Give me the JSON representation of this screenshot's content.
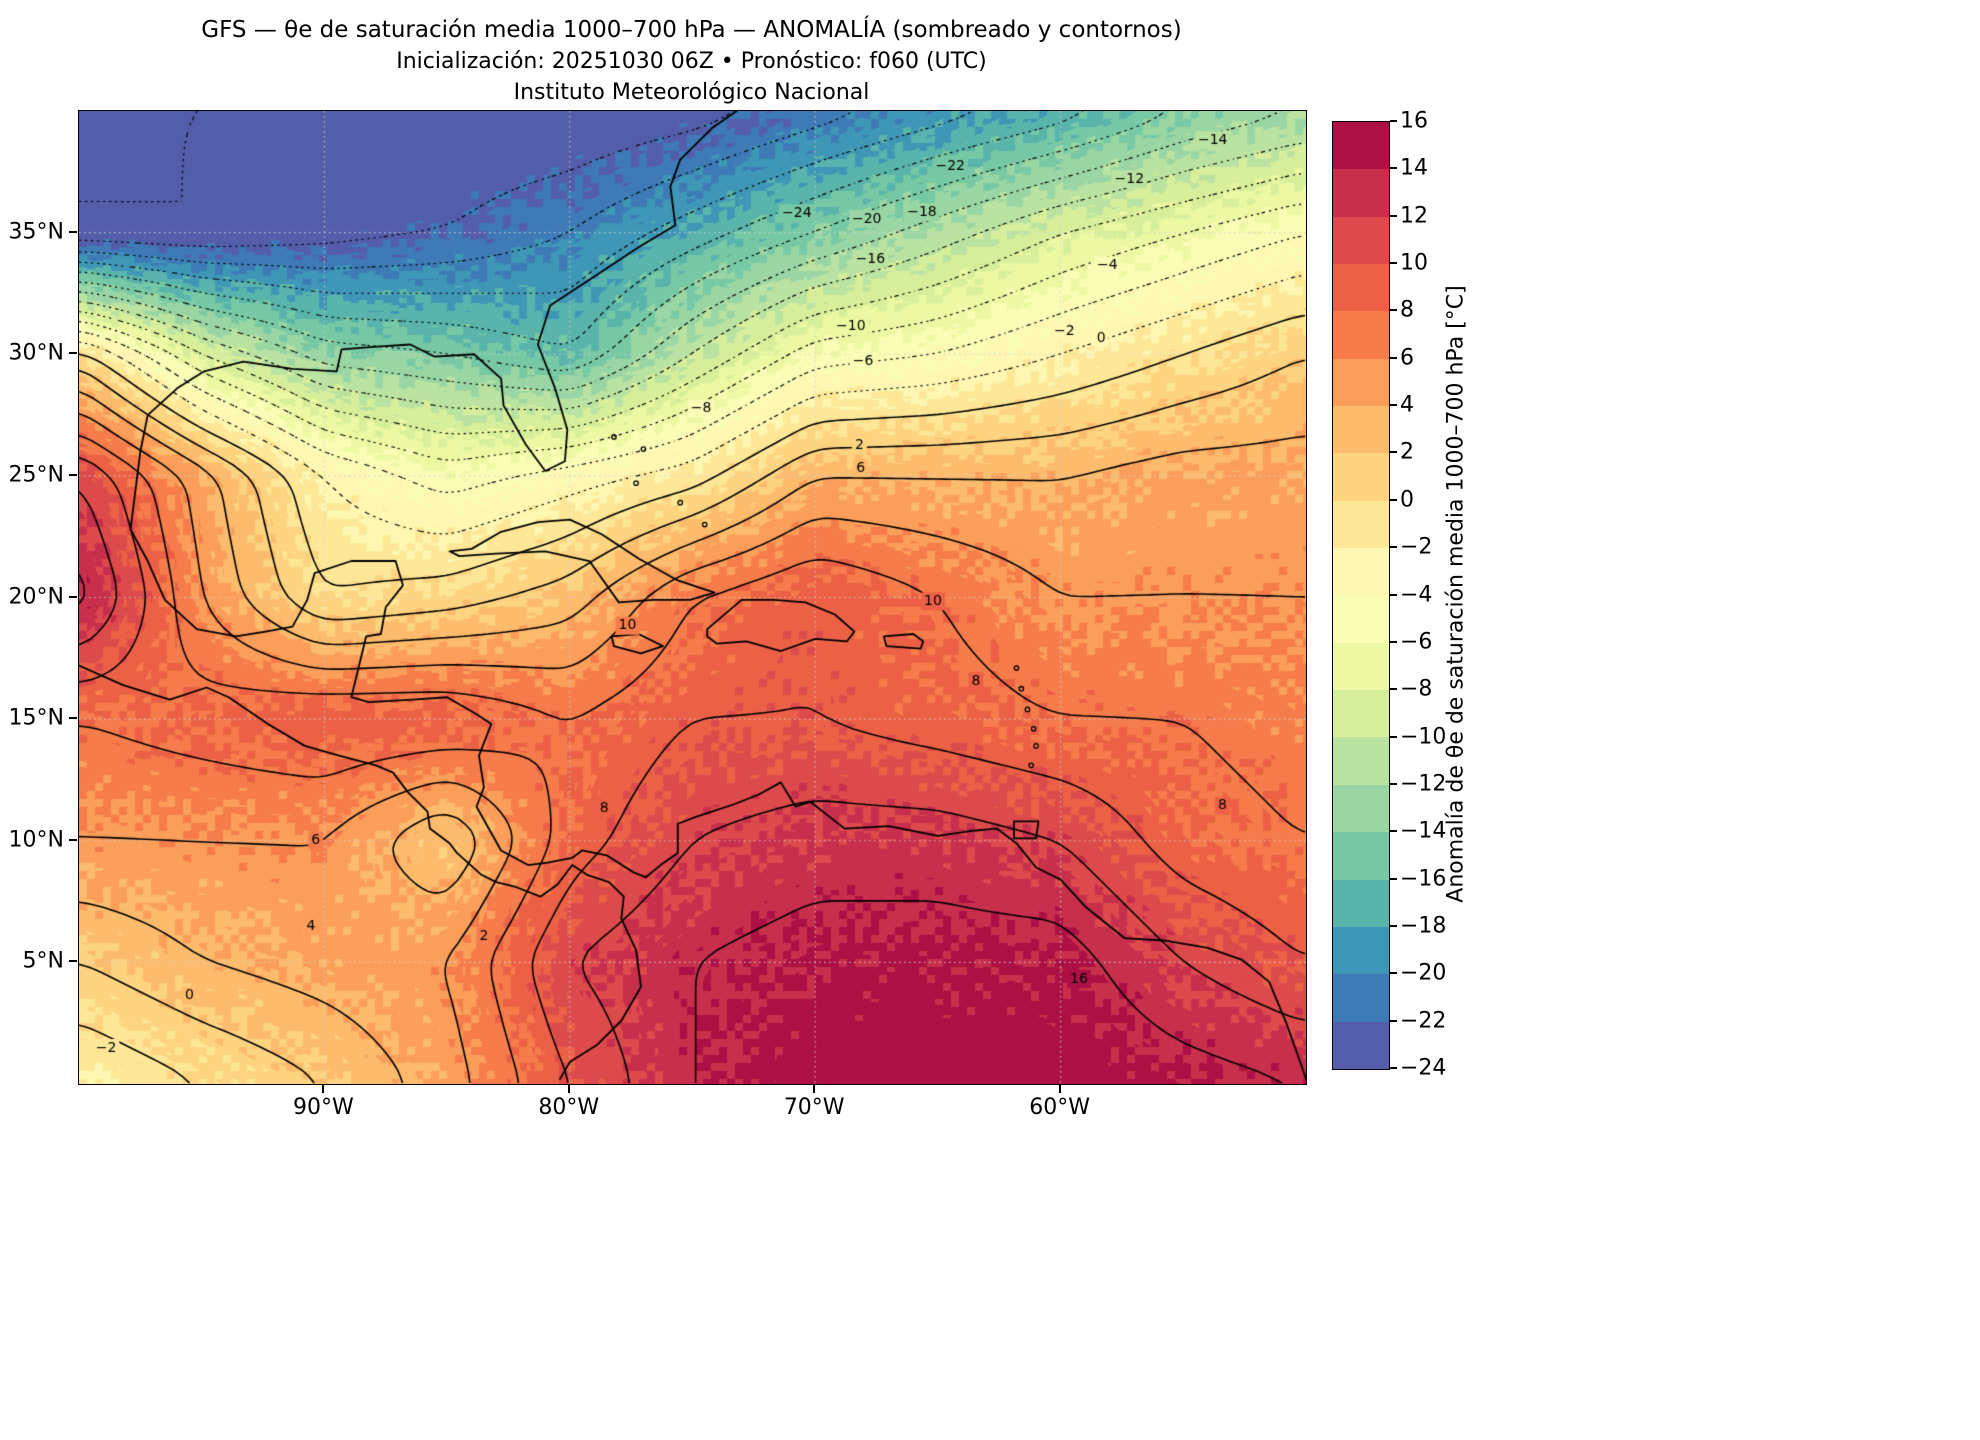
{
  "header": {
    "title": "GFS — θe de saturación media 1000–700 hPa — ANOMALÍA (sombreado y contornos)",
    "subtitle": "Inicialización: 20251030 06Z   •   Pronóstico: f060 (UTC)",
    "institution": "Instituto Meteorológico Nacional"
  },
  "axes": {
    "y_ticks": [
      "35°N",
      "30°N",
      "25°N",
      "20°N",
      "15°N",
      "10°N",
      "5°N"
    ],
    "y_tick_lats": [
      35,
      30,
      25,
      20,
      15,
      10,
      5
    ],
    "x_ticks": [
      "90°W",
      "80°W",
      "70°W",
      "60°W"
    ],
    "x_tick_lons": [
      -90,
      -80,
      -70,
      -60
    ]
  },
  "colorbar": {
    "label": "Anomalía de θe de saturación media 1000–700 hPa [°C]",
    "ticks": [
      "16",
      "14",
      "12",
      "10",
      "8",
      "6",
      "4",
      "2",
      "0",
      "−2",
      "−4",
      "−6",
      "−8",
      "−10",
      "−12",
      "−14",
      "−16",
      "−18",
      "−20",
      "−22",
      "−24"
    ],
    "min": -24,
    "max": 16,
    "step": 2
  },
  "colors": {
    "colormap": [
      "#5e4fa2",
      "#3288bd",
      "#66c2a5",
      "#abdda4",
      "#e6f598",
      "#ffffbf",
      "#fee08b",
      "#fdae61",
      "#f46d43",
      "#d53e4f",
      "#9e0142"
    ],
    "contour": "#000000",
    "grid": "#cccccc",
    "background": "#ffffff"
  },
  "chart_data": {
    "type": "heatmap",
    "title": "GFS — θe de saturación media 1000–700 hPa — ANOMALÍA (sombreado y contornos)",
    "subtitle": "Inicialización: 20251030 06Z • Pronóstico: f060 (UTC)",
    "units": "°C",
    "lon_range": [
      -100,
      -50
    ],
    "lat_range": [
      0,
      40
    ],
    "lons": [
      -100,
      -95,
      -90,
      -85,
      -80,
      -75,
      -70,
      -65,
      -60,
      -55,
      -50
    ],
    "lats": [
      40,
      35,
      30,
      25,
      20,
      15,
      10,
      5,
      0
    ],
    "values": [
      [
        -24,
        -24,
        -24,
        -24,
        -24,
        -23,
        -21,
        -19,
        -17,
        -14,
        -12
      ],
      [
        -24,
        -24,
        -23,
        -22,
        -20,
        -17,
        -14,
        -11,
        -8,
        -6,
        -4
      ],
      [
        1,
        -8,
        -13,
        -14,
        -16,
        -10,
        -5,
        -4,
        -2,
        0,
        2
      ],
      [
        12,
        5,
        -2,
        -5,
        -3,
        -1,
        4,
        4,
        4,
        5,
        5
      ],
      [
        15,
        6,
        0,
        1,
        3,
        8,
        10,
        8,
        6,
        6,
        6
      ],
      [
        8,
        9,
        10,
        10,
        8,
        10,
        10,
        9,
        8,
        8,
        7
      ],
      [
        6,
        6,
        6,
        2,
        9,
        12,
        13,
        13,
        12,
        9,
        8
      ],
      [
        2,
        4,
        5,
        6,
        12,
        14,
        15,
        15,
        15,
        12,
        10
      ],
      [
        -2,
        0,
        2,
        5,
        10,
        14,
        16,
        16,
        16,
        15,
        14
      ]
    ],
    "contour_levels": {
      "min": -24,
      "max": 16,
      "step": 2,
      "negative_style": "dotted",
      "positive_style": "solid"
    },
    "annotations": [
      {
        "text": "−24",
        "fx": 0.585,
        "fy": 0.105
      },
      {
        "text": "−22",
        "fx": 0.71,
        "fy": 0.057
      },
      {
        "text": "−20",
        "fx": 0.642,
        "fy": 0.111
      },
      {
        "text": "−18",
        "fx": 0.687,
        "fy": 0.104
      },
      {
        "text": "−16",
        "fx": 0.645,
        "fy": 0.152
      },
      {
        "text": "−14",
        "fx": 0.924,
        "fy": 0.03
      },
      {
        "text": "−12",
        "fx": 0.856,
        "fy": 0.07
      },
      {
        "text": "−10",
        "fx": 0.629,
        "fy": 0.221
      },
      {
        "text": "−8",
        "fx": 0.507,
        "fy": 0.306
      },
      {
        "text": "−6",
        "fx": 0.639,
        "fy": 0.257
      },
      {
        "text": "−4",
        "fx": 0.838,
        "fy": 0.159
      },
      {
        "text": "−2",
        "fx": 0.803,
        "fy": 0.226
      },
      {
        "text": "0",
        "fx": 0.833,
        "fy": 0.234
      },
      {
        "text": "2",
        "fx": 0.636,
        "fy": 0.344
      },
      {
        "text": "6",
        "fx": 0.637,
        "fy": 0.367
      },
      {
        "text": "10",
        "fx": 0.447,
        "fy": 0.529
      },
      {
        "text": "10",
        "fx": 0.696,
        "fy": 0.504
      },
      {
        "text": "8",
        "fx": 0.731,
        "fy": 0.586
      },
      {
        "text": "8",
        "fx": 0.428,
        "fy": 0.717
      },
      {
        "text": "6",
        "fx": 0.193,
        "fy": 0.75
      },
      {
        "text": "4",
        "fx": 0.189,
        "fy": 0.838
      },
      {
        "text": "2",
        "fx": 0.33,
        "fy": 0.848
      },
      {
        "text": "0",
        "fx": 0.09,
        "fy": 0.909
      },
      {
        "text": "−2",
        "fx": 0.022,
        "fy": 0.963
      },
      {
        "text": "16",
        "fx": 0.815,
        "fy": 0.892
      },
      {
        "text": "8",
        "fx": 0.932,
        "fy": 0.714
      }
    ]
  },
  "basemap": {
    "coastlines": [
      {
        "closed": false,
        "pts": [
          [
            -73.2,
            40
          ],
          [
            -74.2,
            39.3
          ],
          [
            -75.5,
            38.0
          ],
          [
            -75.9,
            36.9
          ],
          [
            -75.7,
            35.3
          ],
          [
            -77.2,
            34.4
          ],
          [
            -79.0,
            33.2
          ],
          [
            -80.8,
            32.0
          ],
          [
            -81.3,
            30.4
          ],
          [
            -80.6,
            28.6
          ],
          [
            -80.1,
            26.9
          ],
          [
            -80.2,
            25.6
          ],
          [
            -81.0,
            25.2
          ],
          [
            -81.8,
            26.3
          ],
          [
            -82.7,
            27.9
          ],
          [
            -82.8,
            29.0
          ],
          [
            -83.9,
            30.0
          ],
          [
            -85.5,
            29.9
          ],
          [
            -86.5,
            30.4
          ],
          [
            -88.0,
            30.3
          ],
          [
            -89.3,
            30.2
          ],
          [
            -89.5,
            29.3
          ],
          [
            -91.3,
            29.4
          ],
          [
            -93.3,
            29.7
          ],
          [
            -94.9,
            29.3
          ],
          [
            -96.0,
            28.6
          ],
          [
            -97.2,
            27.5
          ],
          [
            -97.5,
            26.0
          ],
          [
            -97.7,
            24.4
          ],
          [
            -97.9,
            22.8
          ],
          [
            -97.2,
            21.5
          ],
          [
            -96.5,
            19.9
          ],
          [
            -95.2,
            18.7
          ],
          [
            -93.6,
            18.4
          ],
          [
            -92.4,
            18.6
          ],
          [
            -91.3,
            18.8
          ],
          [
            -90.7,
            19.9
          ],
          [
            -90.4,
            21.0
          ],
          [
            -88.9,
            21.5
          ],
          [
            -87.1,
            21.5
          ],
          [
            -86.8,
            20.5
          ],
          [
            -87.5,
            19.6
          ],
          [
            -87.7,
            18.5
          ],
          [
            -88.3,
            18.4
          ],
          [
            -88.9,
            15.9
          ],
          [
            -88.2,
            15.7
          ],
          [
            -86.4,
            15.8
          ],
          [
            -85.0,
            15.9
          ],
          [
            -83.8,
            15.2
          ],
          [
            -83.2,
            14.8
          ],
          [
            -83.7,
            13.5
          ],
          [
            -83.5,
            12.2
          ],
          [
            -83.8,
            11.4
          ],
          [
            -82.8,
            9.6
          ],
          [
            -81.7,
            9.0
          ],
          [
            -80.9,
            9.1
          ],
          [
            -79.9,
            9.3
          ],
          [
            -79.5,
            9.6
          ],
          [
            -78.5,
            9.4
          ],
          [
            -77.4,
            8.7
          ],
          [
            -76.9,
            8.5
          ],
          [
            -76.3,
            9.0
          ],
          [
            -75.6,
            9.5
          ],
          [
            -75.6,
            10.7
          ],
          [
            -74.8,
            11.0
          ],
          [
            -73.3,
            11.5
          ],
          [
            -72.3,
            11.9
          ],
          [
            -71.4,
            12.4
          ],
          [
            -70.8,
            11.4
          ],
          [
            -70.2,
            11.6
          ],
          [
            -68.8,
            10.5
          ],
          [
            -67.0,
            10.6
          ],
          [
            -65.0,
            10.2
          ],
          [
            -63.7,
            10.4
          ],
          [
            -62.6,
            10.5
          ],
          [
            -61.8,
            9.9
          ],
          [
            -61.0,
            8.9
          ],
          [
            -60.0,
            8.4
          ],
          [
            -59.0,
            7.3
          ],
          [
            -57.4,
            6.0
          ],
          [
            -55.8,
            5.9
          ],
          [
            -54.0,
            5.6
          ],
          [
            -52.6,
            5.1
          ],
          [
            -51.5,
            4.2
          ],
          [
            -50.8,
            2.5
          ],
          [
            -50.2,
            0.8
          ],
          [
            -50.0,
            0.2
          ]
        ]
      },
      {
        "closed": false,
        "pts": [
          [
            -100,
            17.2
          ],
          [
            -98.2,
            16.4
          ],
          [
            -96.3,
            15.8
          ],
          [
            -94.8,
            16.3
          ],
          [
            -93.9,
            15.9
          ],
          [
            -92.3,
            14.8
          ],
          [
            -90.8,
            13.9
          ],
          [
            -89.4,
            13.5
          ],
          [
            -87.9,
            13.1
          ],
          [
            -87.2,
            12.8
          ],
          [
            -86.6,
            12.0
          ],
          [
            -85.8,
            11.2
          ],
          [
            -85.7,
            10.5
          ],
          [
            -84.9,
            9.9
          ],
          [
            -84.6,
            9.5
          ],
          [
            -83.6,
            8.6
          ],
          [
            -83.0,
            8.3
          ],
          [
            -82.2,
            8.1
          ],
          [
            -81.2,
            7.7
          ],
          [
            -80.5,
            8.2
          ],
          [
            -79.9,
            9.0
          ],
          [
            -79.3,
            8.6
          ],
          [
            -78.4,
            8.3
          ],
          [
            -77.8,
            7.7
          ],
          [
            -77.9,
            6.8
          ],
          [
            -77.3,
            5.5
          ],
          [
            -77.1,
            4.0
          ],
          [
            -77.9,
            2.6
          ],
          [
            -78.9,
            1.6
          ],
          [
            -80.0,
            0.9
          ],
          [
            -80.4,
            0.2
          ]
        ]
      },
      {
        "closed": true,
        "pts": [
          [
            -84.9,
            21.9
          ],
          [
            -84.0,
            22.0
          ],
          [
            -82.8,
            22.7
          ],
          [
            -81.3,
            23.1
          ],
          [
            -80.0,
            23.2
          ],
          [
            -78.7,
            22.6
          ],
          [
            -77.2,
            21.6
          ],
          [
            -75.6,
            20.7
          ],
          [
            -74.1,
            20.2
          ],
          [
            -75.1,
            19.9
          ],
          [
            -76.6,
            19.9
          ],
          [
            -78.0,
            19.8
          ],
          [
            -79.2,
            21.5
          ],
          [
            -81.0,
            21.9
          ],
          [
            -83.0,
            21.8
          ],
          [
            -84.5,
            21.7
          ]
        ]
      },
      {
        "closed": true,
        "pts": [
          [
            -74.4,
            18.4
          ],
          [
            -74.4,
            18.7
          ],
          [
            -73.0,
            19.9
          ],
          [
            -71.7,
            19.9
          ],
          [
            -70.4,
            19.8
          ],
          [
            -69.2,
            19.3
          ],
          [
            -68.4,
            18.6
          ],
          [
            -68.7,
            18.2
          ],
          [
            -70.0,
            18.3
          ],
          [
            -71.4,
            17.8
          ],
          [
            -72.8,
            18.2
          ],
          [
            -74.0,
            18.1
          ]
        ]
      },
      {
        "closed": true,
        "pts": [
          [
            -78.3,
            18.4
          ],
          [
            -77.2,
            18.5
          ],
          [
            -76.2,
            18.0
          ],
          [
            -77.1,
            17.7
          ],
          [
            -78.2,
            18.0
          ]
        ]
      },
      {
        "closed": true,
        "pts": [
          [
            -67.2,
            18.4
          ],
          [
            -66.0,
            18.5
          ],
          [
            -65.6,
            18.2
          ],
          [
            -65.7,
            17.9
          ],
          [
            -67.1,
            18.0
          ]
        ]
      },
      {
        "closed": true,
        "pts": [
          [
            -61.9,
            10.8
          ],
          [
            -60.9,
            10.8
          ],
          [
            -61.0,
            10.1
          ],
          [
            -61.9,
            10.1
          ]
        ]
      }
    ],
    "islands": [
      [
        -78.2,
        26.6
      ],
      [
        -77.0,
        26.1
      ],
      [
        -77.3,
        24.7
      ],
      [
        -75.5,
        23.9
      ],
      [
        -74.5,
        23.0
      ],
      [
        -61.8,
        17.1
      ],
      [
        -61.6,
        16.25
      ],
      [
        -61.35,
        15.4
      ],
      [
        -61.1,
        14.6
      ],
      [
        -61.0,
        13.9
      ],
      [
        -61.2,
        13.1
      ]
    ]
  }
}
